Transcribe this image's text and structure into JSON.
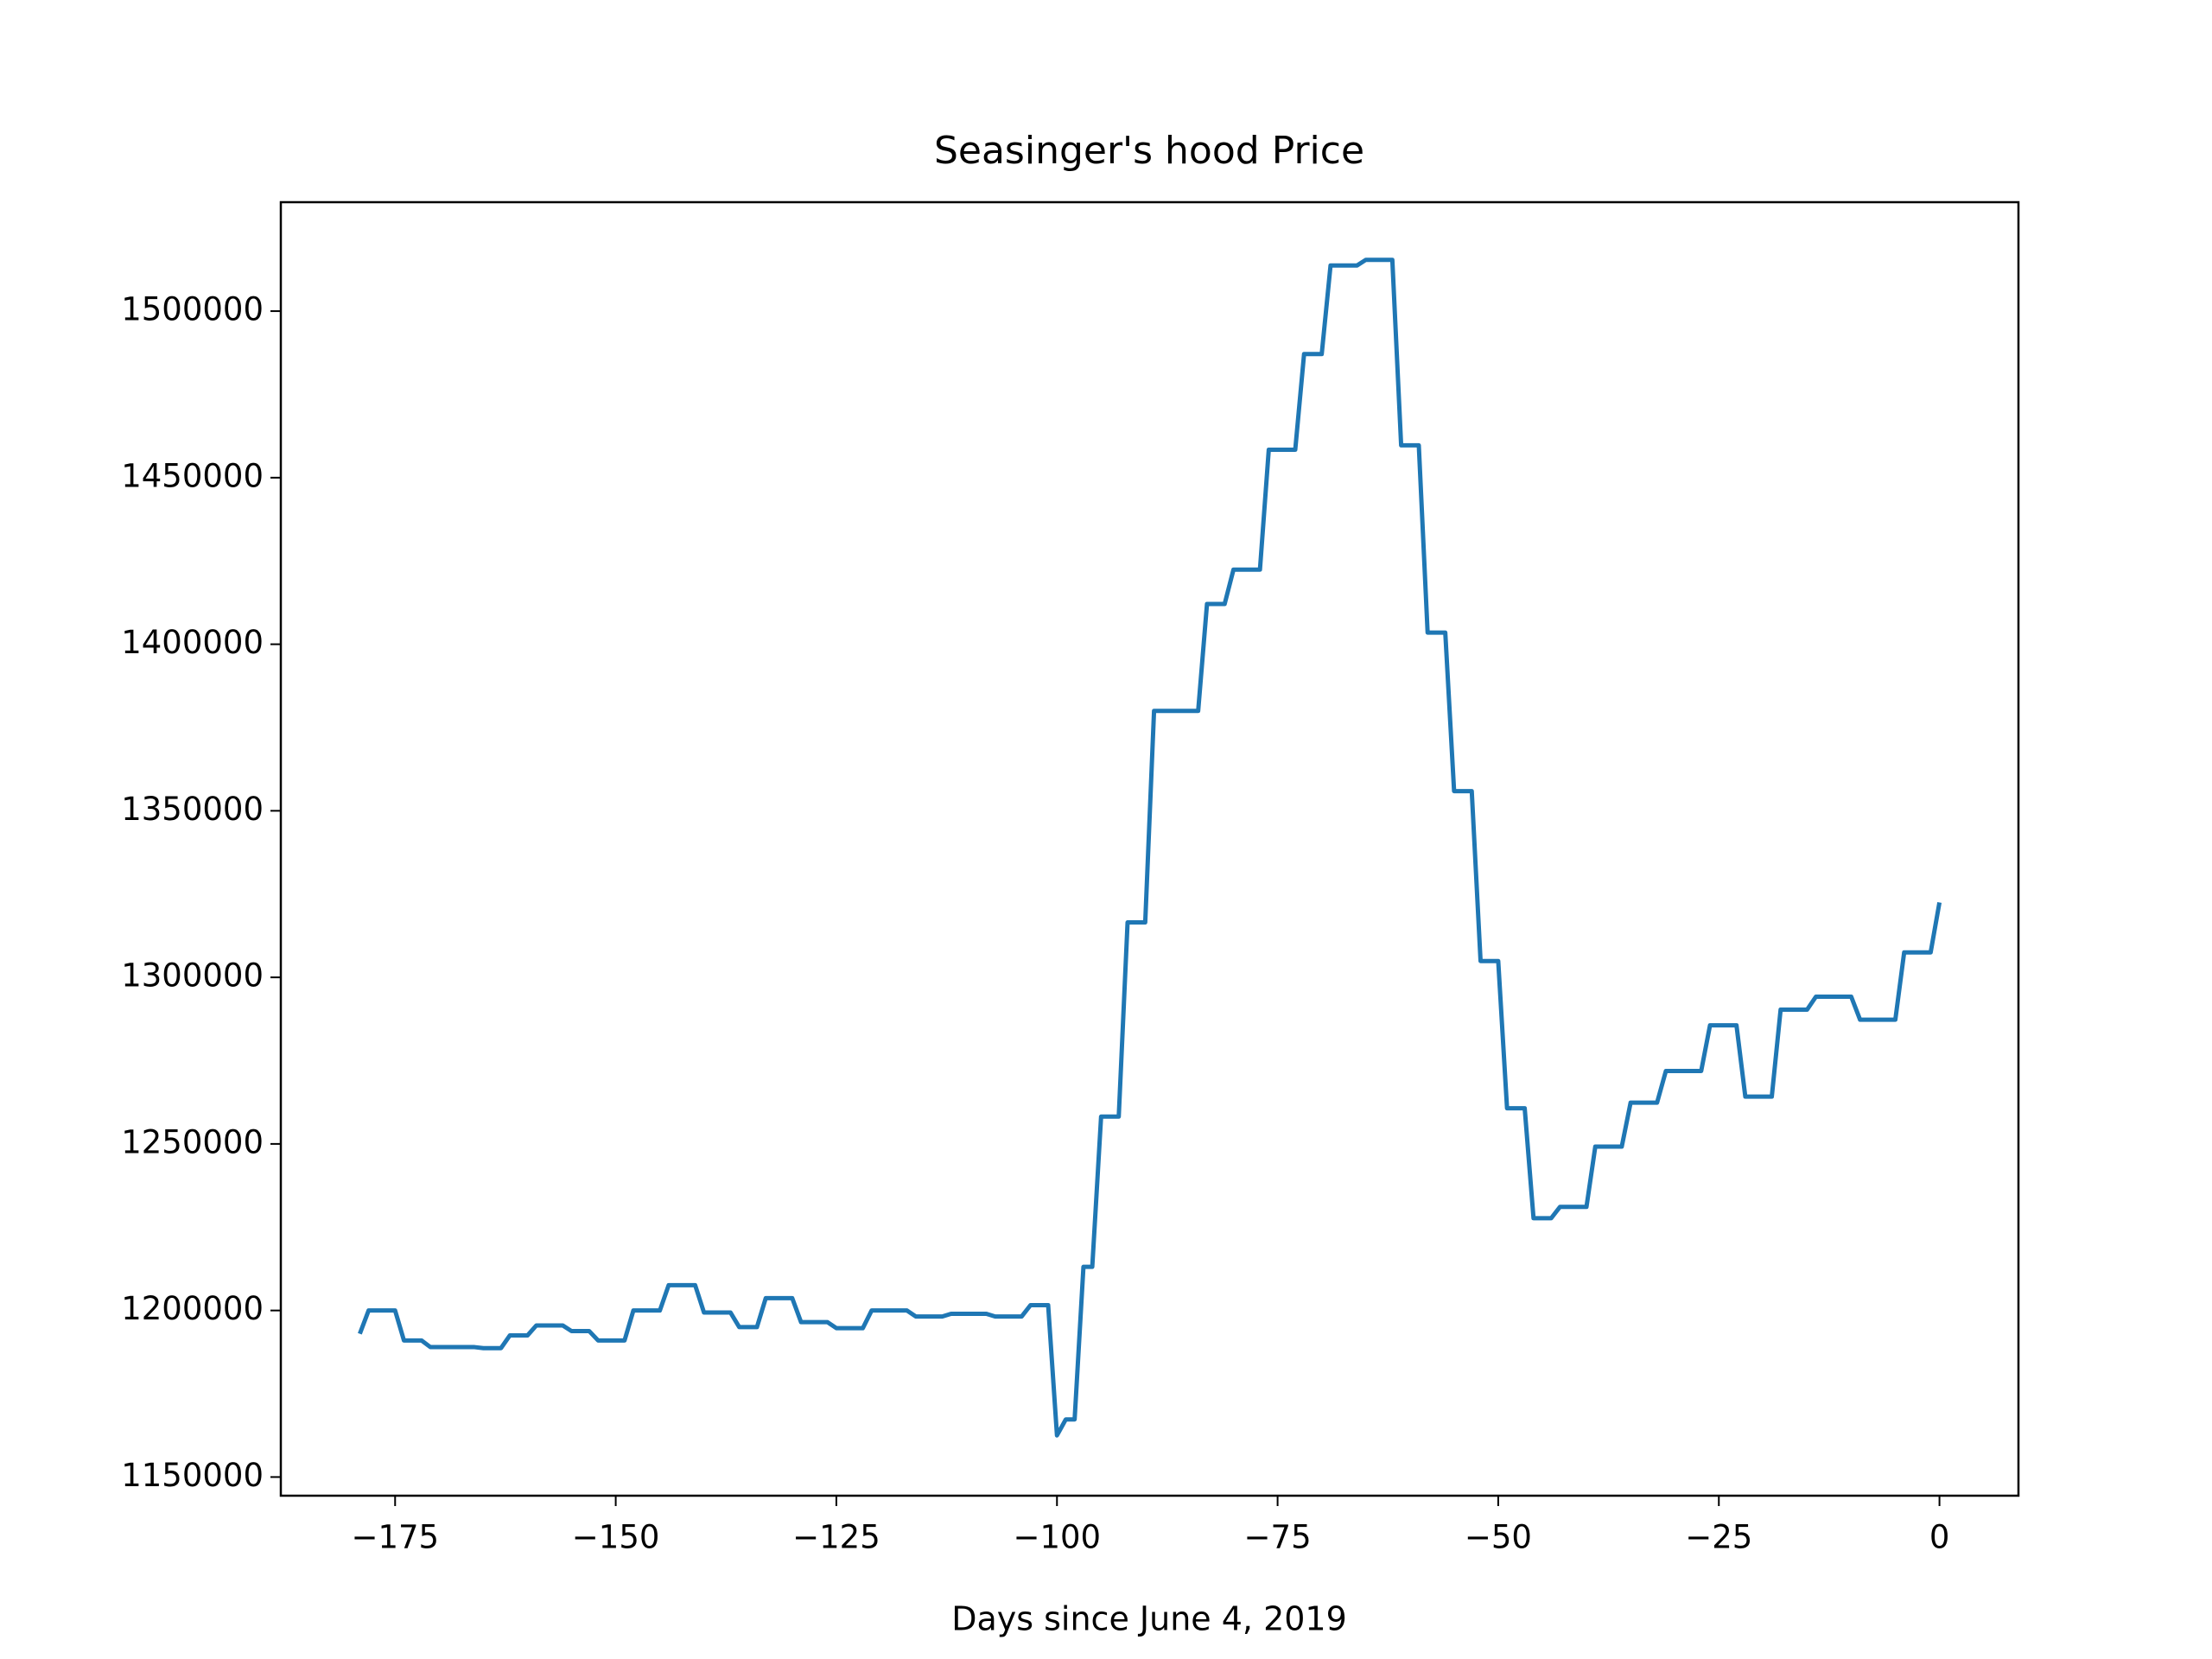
{
  "chart_data": {
    "type": "line",
    "title": "Seasinger's hood Price",
    "x_label": "Days since June 4, 2019",
    "x": [
      -179,
      -178,
      -175,
      -174,
      -172,
      -171,
      -166,
      -165,
      -163,
      -162,
      -160,
      -159,
      -156,
      -155,
      -153,
      -152,
      -149,
      -148,
      -145,
      -144,
      -141,
      -140,
      -137,
      -136,
      -134,
      -133,
      -130,
      -129,
      -126,
      -125,
      -122,
      -121,
      -117,
      -116,
      -113,
      -112,
      -108,
      -107,
      -104,
      -103,
      -101,
      -100,
      -99,
      -98,
      -97,
      -96,
      -95,
      -93,
      -92,
      -90,
      -89,
      -84,
      -83,
      -81,
      -80,
      -77,
      -76,
      -73,
      -72,
      -70,
      -69,
      -66,
      -65,
      -62,
      -61,
      -59,
      -58,
      -56,
      -55,
      -53,
      -52,
      -50,
      -49,
      -47,
      -46,
      -44,
      -43,
      -40,
      -39,
      -36,
      -35,
      -32,
      -31,
      -27,
      -26,
      -23,
      -22,
      -19,
      -18,
      -15,
      -14,
      -10,
      -9,
      -5,
      -4,
      -1,
      0
    ],
    "series": [
      {
        "color": "#1f77b4",
        "values": [
          1193000,
          1200000,
          1200000,
          1191000,
          1191000,
          1189000,
          1189000,
          1188700,
          1188700,
          1192500,
          1192500,
          1195500,
          1195500,
          1193800,
          1193800,
          1191000,
          1191000,
          1200000,
          1200000,
          1207600,
          1207600,
          1199400,
          1199400,
          1195000,
          1195000,
          1203700,
          1203700,
          1196500,
          1196500,
          1194700,
          1194700,
          1200000,
          1200000,
          1198200,
          1198200,
          1199000,
          1199000,
          1198200,
          1198200,
          1201600,
          1201600,
          1162500,
          1167300,
          1167300,
          1213100,
          1213100,
          1258200,
          1258200,
          1316500,
          1316500,
          1380000,
          1380000,
          1412100,
          1412100,
          1422400,
          1422400,
          1458400,
          1458400,
          1487100,
          1487100,
          1513700,
          1513700,
          1515400,
          1515400,
          1459700,
          1459700,
          1403500,
          1403500,
          1355900,
          1355900,
          1304900,
          1304900,
          1260700,
          1260700,
          1227700,
          1227700,
          1231100,
          1231100,
          1249200,
          1249200,
          1262400,
          1262400,
          1271900,
          1271900,
          1285600,
          1285600,
          1264200,
          1264200,
          1290300,
          1290300,
          1294200,
          1294200,
          1287300,
          1287300,
          1307500,
          1307500,
          1322500
        ]
      }
    ],
    "xlim": [
      -187.95,
      8.95
    ],
    "xticks": [
      {
        "value": -175,
        "label": "−175"
      },
      {
        "value": -150,
        "label": "−150"
      },
      {
        "value": -125,
        "label": "−125"
      },
      {
        "value": -100,
        "label": "−100"
      },
      {
        "value": -75,
        "label": "−75"
      },
      {
        "value": -50,
        "label": "−50"
      },
      {
        "value": -25,
        "label": "−25"
      },
      0
    ],
    "ylim": [
      1144400,
      1532700
    ],
    "yticks": [
      1150000,
      1200000,
      1250000,
      1300000,
      1350000,
      1400000,
      1450000,
      1500000
    ]
  }
}
